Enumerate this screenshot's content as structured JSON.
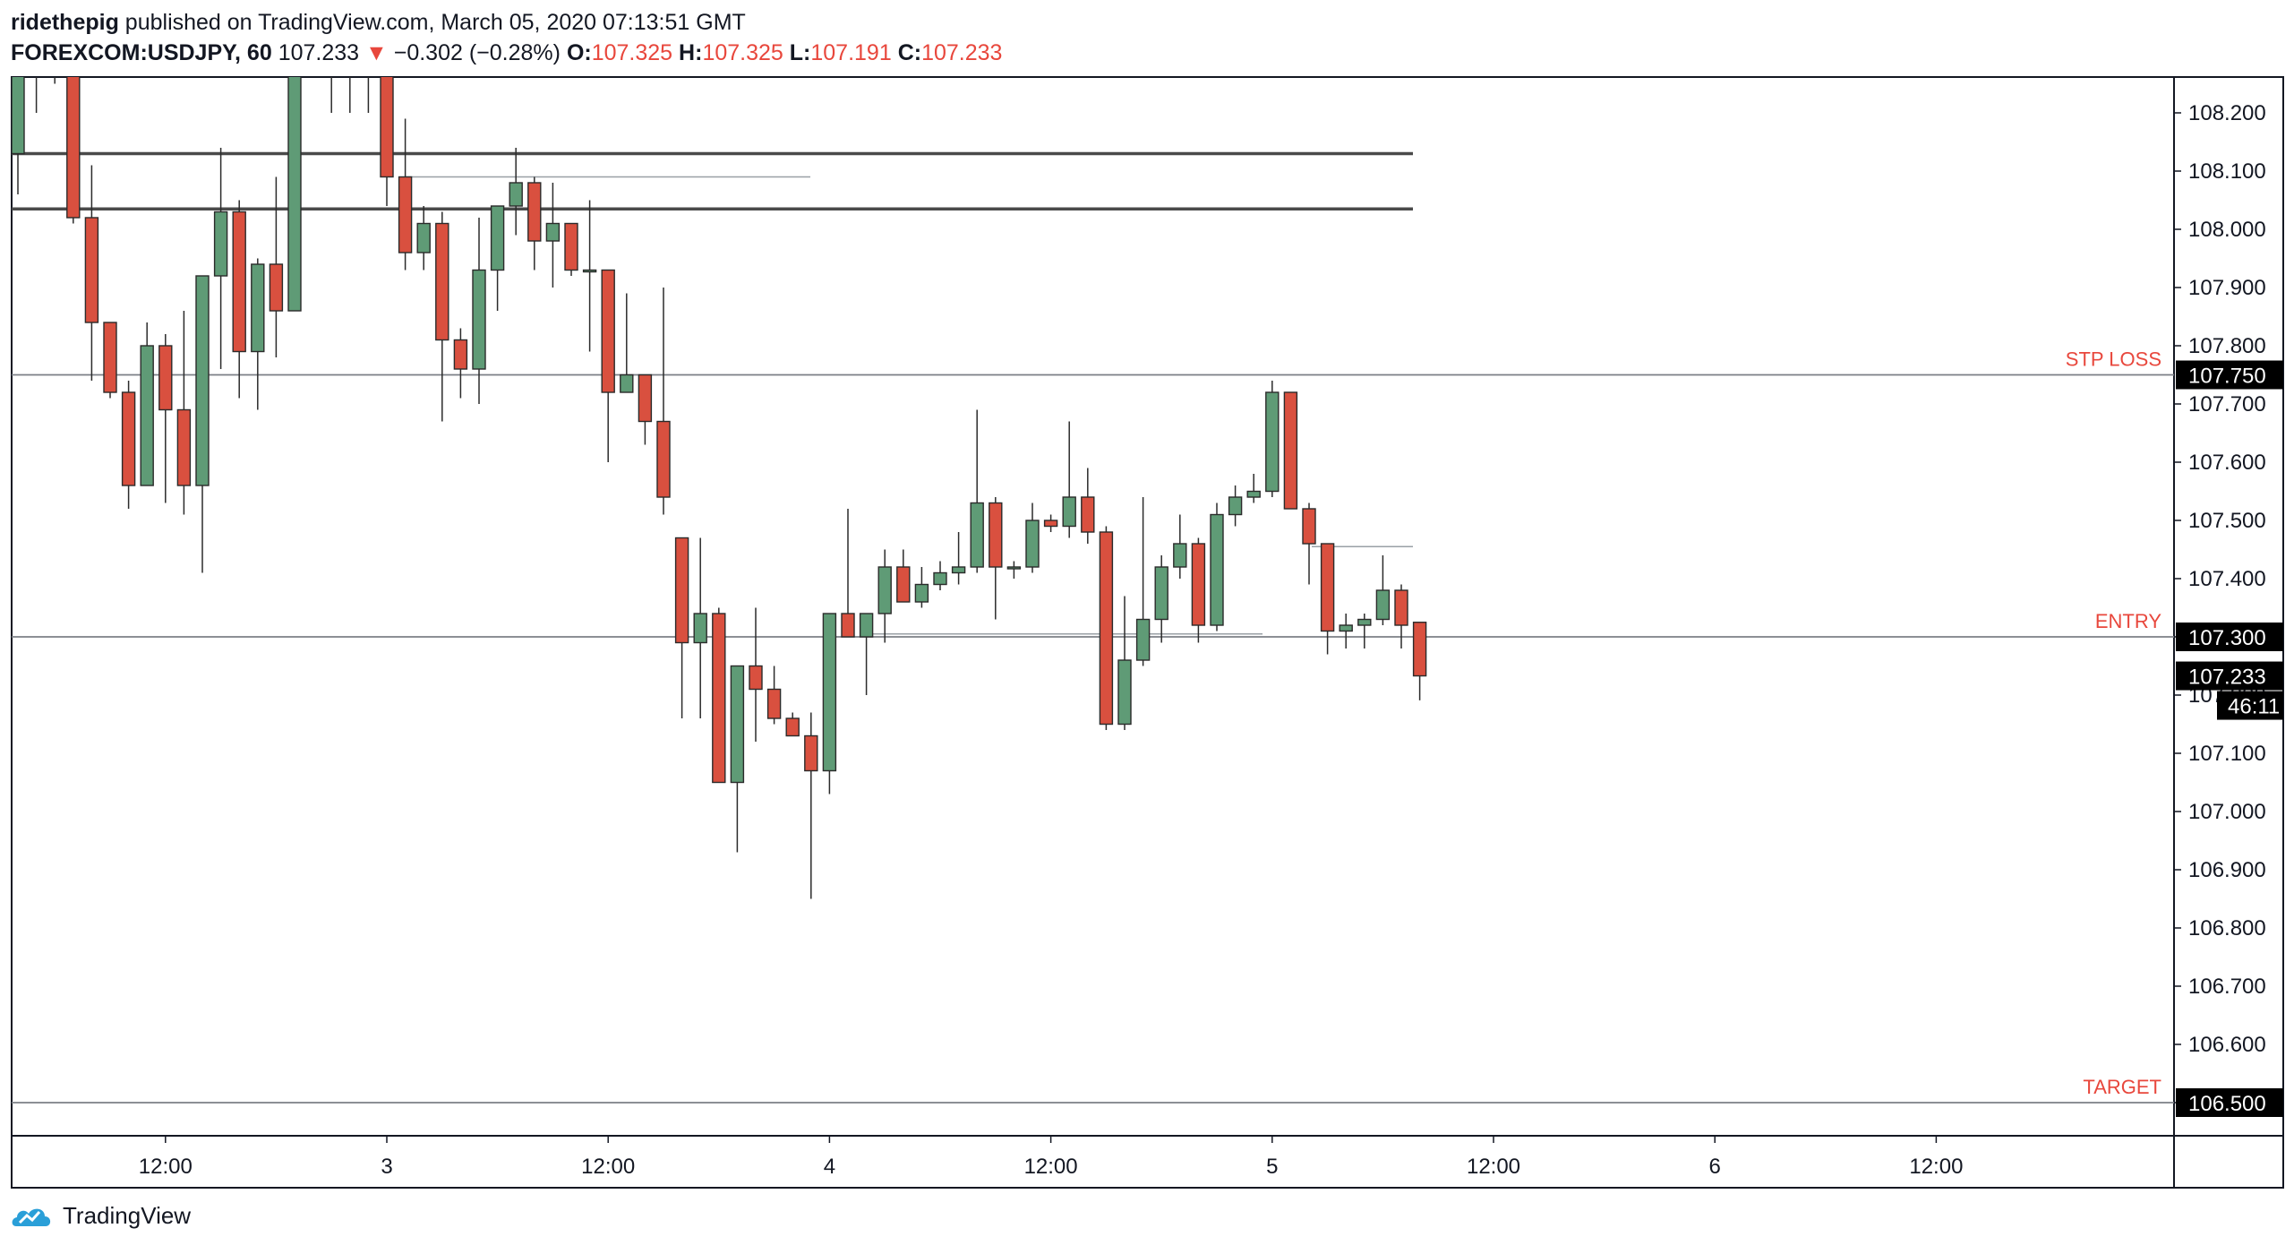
{
  "header": {
    "author": "ridethepig",
    "published_text": "published on TradingView.com, March 05, 2020 07:13:51 GMT",
    "symbol": "FOREXCOM:USDJPY, 60",
    "last": "107.233",
    "change_arrow": "▼",
    "change": "−0.302 (−0.28%)",
    "o_label": "O:",
    "o": "107.325",
    "h_label": "H:",
    "h": "107.325",
    "l_label": "L:",
    "l": "107.191",
    "c_label": "C:",
    "c": "107.233"
  },
  "footer": {
    "brand": "TradingView",
    "logo_icon": "tradingview-cloud-icon"
  },
  "colors": {
    "up": "#5f9b76",
    "down": "#d9503f",
    "axis": "#131722",
    "label_red": "#e8473c"
  },
  "chart_data": {
    "type": "candlestick",
    "title": "",
    "y_range": [
      106.34,
      108.35
    ],
    "y_ticks": [
      "108.200",
      "108.100",
      "108.000",
      "107.900",
      "107.800",
      "107.700",
      "107.600",
      "107.500",
      "107.400",
      "107.300",
      "107.200",
      "107.100",
      "107.000",
      "106.900",
      "106.800",
      "106.700",
      "106.600",
      "106.500"
    ],
    "x_ticks": [
      {
        "label": "12:00",
        "i": 8
      },
      {
        "label": "3",
        "i": 20
      },
      {
        "label": "12:00",
        "i": 32
      },
      {
        "label": "4",
        "i": 44
      },
      {
        "label": "12:00",
        "i": 56
      },
      {
        "label": "5",
        "i": 68
      },
      {
        "label": "12:00",
        "i": 80
      },
      {
        "label": "6",
        "i": 92
      },
      {
        "label": "12:00",
        "i": 104
      }
    ],
    "levels": [
      {
        "name": "STP LOSS",
        "price": 107.75,
        "value_label": "107.750"
      },
      {
        "name": "ENTRY",
        "price": 107.3,
        "value_label": "107.300"
      },
      {
        "name": "TARGET",
        "price": 106.5,
        "value_label": "106.500"
      }
    ],
    "resistance_lines": [
      108.13,
      108.035
    ],
    "last_price": {
      "value": 107.233,
      "label": "107.233",
      "countdown": "46:11"
    },
    "candles": [
      {
        "o": 108.13,
        "h": 108.36,
        "l": 108.06,
        "c": 108.36
      },
      {
        "o": 108.36,
        "h": 108.36,
        "l": 108.2,
        "c": 108.36
      },
      {
        "o": 108.36,
        "h": 108.36,
        "l": 108.25,
        "c": 108.36
      },
      {
        "o": 108.36,
        "h": 108.36,
        "l": 108.01,
        "c": 108.02
      },
      {
        "o": 108.02,
        "h": 108.11,
        "l": 107.74,
        "c": 107.84
      },
      {
        "o": 107.84,
        "h": 107.84,
        "l": 107.71,
        "c": 107.72
      },
      {
        "o": 107.72,
        "h": 107.74,
        "l": 107.52,
        "c": 107.56
      },
      {
        "o": 107.56,
        "h": 107.84,
        "l": 107.56,
        "c": 107.8
      },
      {
        "o": 107.8,
        "h": 107.82,
        "l": 107.53,
        "c": 107.69
      },
      {
        "o": 107.69,
        "h": 107.86,
        "l": 107.51,
        "c": 107.56
      },
      {
        "o": 107.56,
        "h": 107.92,
        "l": 107.41,
        "c": 107.92
      },
      {
        "o": 107.92,
        "h": 108.14,
        "l": 107.76,
        "c": 108.03
      },
      {
        "o": 108.03,
        "h": 108.05,
        "l": 107.71,
        "c": 107.79
      },
      {
        "o": 107.79,
        "h": 107.95,
        "l": 107.69,
        "c": 107.94
      },
      {
        "o": 107.94,
        "h": 108.09,
        "l": 107.78,
        "c": 107.86
      },
      {
        "o": 107.86,
        "h": 108.36,
        "l": 107.86,
        "c": 108.36
      },
      {
        "o": 108.36,
        "h": 108.36,
        "l": 108.35,
        "c": 108.36
      },
      {
        "o": 108.36,
        "h": 108.36,
        "l": 108.2,
        "c": 108.36
      },
      {
        "o": 108.36,
        "h": 108.36,
        "l": 108.2,
        "c": 108.36
      },
      {
        "o": 108.36,
        "h": 108.36,
        "l": 108.2,
        "c": 108.36
      },
      {
        "o": 108.36,
        "h": 108.36,
        "l": 108.04,
        "c": 108.09
      },
      {
        "o": 108.09,
        "h": 108.19,
        "l": 107.93,
        "c": 107.96
      },
      {
        "o": 107.96,
        "h": 108.04,
        "l": 107.93,
        "c": 108.01
      },
      {
        "o": 108.01,
        "h": 108.03,
        "l": 107.67,
        "c": 107.81
      },
      {
        "o": 107.81,
        "h": 107.83,
        "l": 107.71,
        "c": 107.76
      },
      {
        "o": 107.76,
        "h": 108.02,
        "l": 107.7,
        "c": 107.93
      },
      {
        "o": 107.93,
        "h": 108.04,
        "l": 107.86,
        "c": 108.04
      },
      {
        "o": 108.04,
        "h": 108.14,
        "l": 107.99,
        "c": 108.08
      },
      {
        "o": 108.08,
        "h": 108.09,
        "l": 107.93,
        "c": 107.98
      },
      {
        "o": 107.98,
        "h": 108.08,
        "l": 107.9,
        "c": 108.01
      },
      {
        "o": 108.01,
        "h": 108.01,
        "l": 107.92,
        "c": 107.93
      },
      {
        "o": 107.93,
        "h": 108.05,
        "l": 107.79,
        "c": 107.93
      },
      {
        "o": 107.93,
        "h": 107.93,
        "l": 107.6,
        "c": 107.72
      },
      {
        "o": 107.72,
        "h": 107.89,
        "l": 107.72,
        "c": 107.75
      },
      {
        "o": 107.75,
        "h": 107.75,
        "l": 107.63,
        "c": 107.67
      },
      {
        "o": 107.67,
        "h": 107.9,
        "l": 107.51,
        "c": 107.54
      },
      {
        "o": 107.47,
        "h": 107.47,
        "l": 107.16,
        "c": 107.29
      },
      {
        "o": 107.29,
        "h": 107.47,
        "l": 107.16,
        "c": 107.34
      },
      {
        "o": 107.34,
        "h": 107.35,
        "l": 107.05,
        "c": 107.05
      },
      {
        "o": 107.05,
        "h": 107.25,
        "l": 106.93,
        "c": 107.25
      },
      {
        "o": 107.25,
        "h": 107.35,
        "l": 107.12,
        "c": 107.21
      },
      {
        "o": 107.21,
        "h": 107.25,
        "l": 107.15,
        "c": 107.16
      },
      {
        "o": 107.16,
        "h": 107.17,
        "l": 107.13,
        "c": 107.13
      },
      {
        "o": 107.13,
        "h": 107.17,
        "l": 106.85,
        "c": 107.07
      },
      {
        "o": 107.07,
        "h": 107.34,
        "l": 107.03,
        "c": 107.34
      },
      {
        "o": 107.34,
        "h": 107.52,
        "l": 107.3,
        "c": 107.3
      },
      {
        "o": 107.3,
        "h": 107.34,
        "l": 107.2,
        "c": 107.34
      },
      {
        "o": 107.34,
        "h": 107.45,
        "l": 107.29,
        "c": 107.42
      },
      {
        "o": 107.42,
        "h": 107.45,
        "l": 107.36,
        "c": 107.36
      },
      {
        "o": 107.36,
        "h": 107.42,
        "l": 107.35,
        "c": 107.39
      },
      {
        "o": 107.39,
        "h": 107.43,
        "l": 107.38,
        "c": 107.41
      },
      {
        "o": 107.41,
        "h": 107.48,
        "l": 107.39,
        "c": 107.42
      },
      {
        "o": 107.42,
        "h": 107.69,
        "l": 107.41,
        "c": 107.53
      },
      {
        "o": 107.53,
        "h": 107.54,
        "l": 107.33,
        "c": 107.42
      },
      {
        "o": 107.42,
        "h": 107.43,
        "l": 107.4,
        "c": 107.42
      },
      {
        "o": 107.42,
        "h": 107.53,
        "l": 107.41,
        "c": 107.5
      },
      {
        "o": 107.5,
        "h": 107.51,
        "l": 107.48,
        "c": 107.49
      },
      {
        "o": 107.49,
        "h": 107.67,
        "l": 107.47,
        "c": 107.54
      },
      {
        "o": 107.54,
        "h": 107.59,
        "l": 107.46,
        "c": 107.48
      },
      {
        "o": 107.48,
        "h": 107.49,
        "l": 107.14,
        "c": 107.15
      },
      {
        "o": 107.15,
        "h": 107.37,
        "l": 107.14,
        "c": 107.26
      },
      {
        "o": 107.26,
        "h": 107.54,
        "l": 107.25,
        "c": 107.33
      },
      {
        "o": 107.33,
        "h": 107.44,
        "l": 107.29,
        "c": 107.42
      },
      {
        "o": 107.42,
        "h": 107.51,
        "l": 107.4,
        "c": 107.46
      },
      {
        "o": 107.46,
        "h": 107.47,
        "l": 107.29,
        "c": 107.32
      },
      {
        "o": 107.32,
        "h": 107.53,
        "l": 107.31,
        "c": 107.51
      },
      {
        "o": 107.51,
        "h": 107.56,
        "l": 107.49,
        "c": 107.54
      },
      {
        "o": 107.54,
        "h": 107.58,
        "l": 107.53,
        "c": 107.55
      },
      {
        "o": 107.55,
        "h": 107.74,
        "l": 107.54,
        "c": 107.72
      },
      {
        "o": 107.72,
        "h": 107.72,
        "l": 107.52,
        "c": 107.52
      },
      {
        "o": 107.52,
        "h": 107.53,
        "l": 107.39,
        "c": 107.46
      },
      {
        "o": 107.46,
        "h": 107.46,
        "l": 107.27,
        "c": 107.31
      },
      {
        "o": 107.31,
        "h": 107.34,
        "l": 107.28,
        "c": 107.32
      },
      {
        "o": 107.32,
        "h": 107.34,
        "l": 107.28,
        "c": 107.33
      },
      {
        "o": 107.33,
        "h": 107.44,
        "l": 107.32,
        "c": 107.38
      },
      {
        "o": 107.38,
        "h": 107.39,
        "l": 107.28,
        "c": 107.32
      },
      {
        "o": 107.325,
        "h": 107.325,
        "l": 107.191,
        "c": 107.233
      }
    ]
  }
}
